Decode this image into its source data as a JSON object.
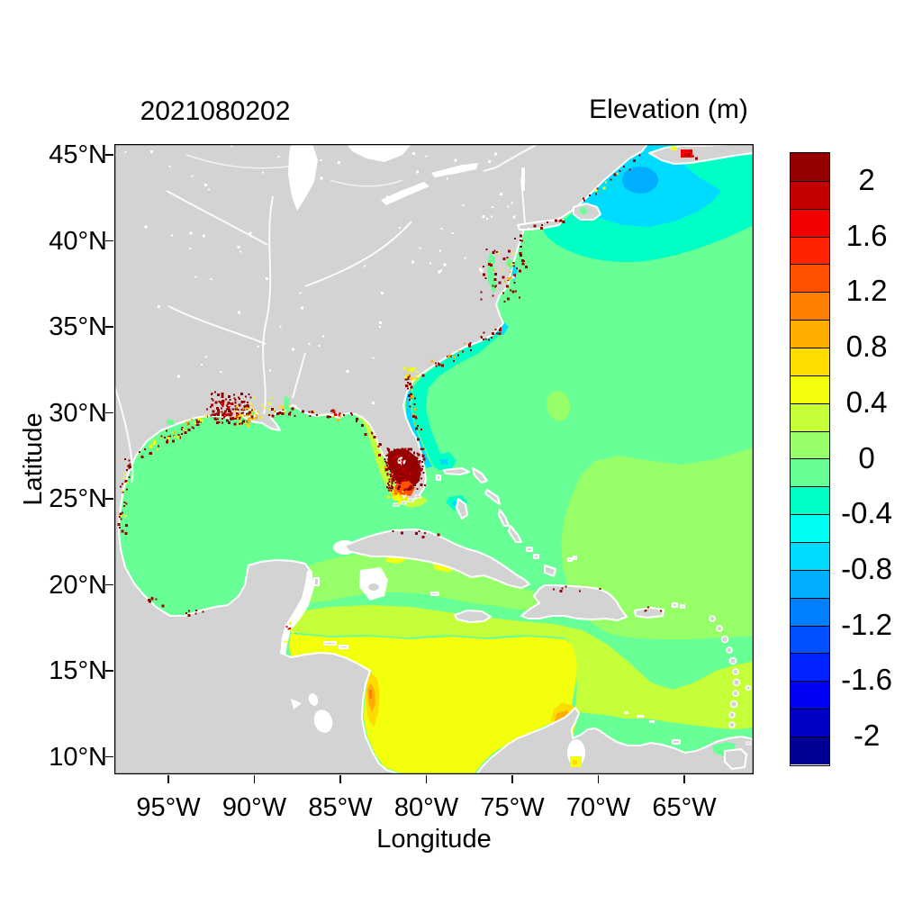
{
  "header": {
    "title": "2021080202",
    "legend_title": "Elevation (m)"
  },
  "axes": {
    "x_label": "Longitude",
    "y_label": "Latitude",
    "x_ticks": [
      "95°W",
      "90°W",
      "85°W",
      "80°W",
      "75°W",
      "70°W",
      "65°W"
    ],
    "y_ticks": [
      "45°N",
      "40°N",
      "35°N",
      "30°N",
      "25°N",
      "20°N",
      "15°N",
      "10°N"
    ]
  },
  "colorbar": {
    "tick_labels": [
      "2",
      "1.6",
      "1.2",
      "0.8",
      "0.4",
      "0",
      "-0.4",
      "-0.8",
      "-1.2",
      "-1.6",
      "-2"
    ]
  },
  "chart_data": {
    "type": "heatmap",
    "title": "2021080202",
    "colorbar_title": "Elevation (m)",
    "xlabel": "Longitude",
    "ylabel": "Latitude",
    "value_units": "m",
    "x_axis_ticks_deg_west": [
      95,
      90,
      85,
      80,
      75,
      70,
      65
    ],
    "y_axis_ticks_deg_north": [
      45,
      40,
      35,
      30,
      25,
      20,
      15,
      10
    ],
    "lon_extent_deg_west": [
      98.1,
      60.9
    ],
    "lat_extent_deg_north": [
      8.9,
      45.6
    ],
    "level_edges_m": [
      -2.2,
      -2.0,
      -1.8,
      -1.6,
      -1.4,
      -1.2,
      -1.0,
      -0.8,
      -0.6,
      -0.4,
      -0.2,
      0,
      0.2,
      0.4,
      0.6,
      0.8,
      1.0,
      1.2,
      1.4,
      1.6,
      1.8,
      2.0,
      2.2
    ],
    "colorbar_tick_values": [
      2,
      1.6,
      1.2,
      0.8,
      0.4,
      0,
      -0.4,
      -0.8,
      -1.2,
      -1.6,
      -2
    ],
    "palette_bottom_to_top": [
      "#000097",
      "#0000C5",
      "#0000F3",
      "#0023FF",
      "#0051FF",
      "#0080FF",
      "#00AEFF",
      "#00DCFF",
      "#00FFF3",
      "#00FFC5",
      "#68FF97",
      "#97FF68",
      "#C5FF3A",
      "#F3FF0B",
      "#FFDC00",
      "#FFAE00",
      "#FF8000",
      "#FF5100",
      "#FF2300",
      "#F30000",
      "#C50000",
      "#970000"
    ],
    "land_color": "#D3D3D3",
    "no_data_color": "#FFFFFF",
    "background_color": "#FFFFFF",
    "regions": [
      {
        "area": "Gulf of Mexico, Bahamas and northwest Atlantic open water",
        "elevation_m": "-0.2 to 0.2"
      },
      {
        "area": "Gulf of Maine / Bay of Fundy",
        "elevation_m": "-1.2 to -0.4"
      },
      {
        "area": "US southeast shelf, Florida east coast to Cape Hatteras",
        "elevation_m": "-0.8 to -0.2"
      },
      {
        "area": "Central and eastern Caribbean",
        "elevation_m": "0.2 to 0.6"
      },
      {
        "area": "Southwestern Caribbean and Venezuela/Colombia coast",
        "elevation_m": "0.4 to 1.0"
      },
      {
        "area": "Lake Maracaibo and Nicaragua coast spots",
        "elevation_m": "0.8 to 1.2"
      },
      {
        "area": "South Florida / Everglades",
        "elevation_m": "1.4 to > 2"
      },
      {
        "area": "Louisiana-Mississippi coast and scattered coastal cells, US east and Gulf coasts",
        "elevation_m": "0.6 to > 2"
      }
    ]
  }
}
